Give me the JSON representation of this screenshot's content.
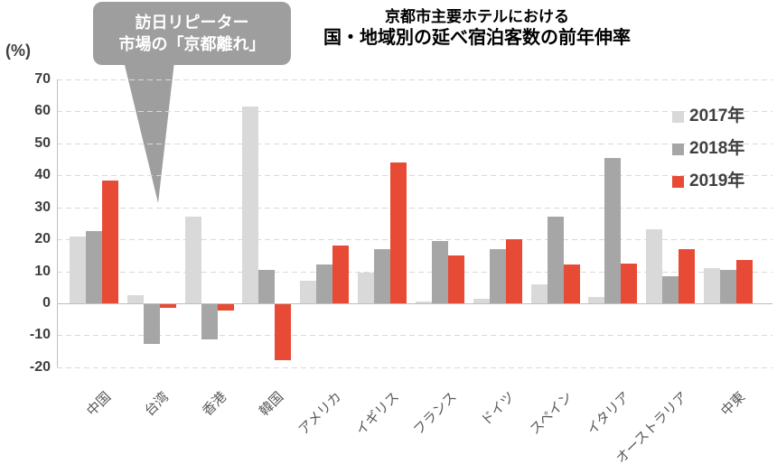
{
  "callout": {
    "line1": "訪日リピーター",
    "line2": "市場の「京都離れ」"
  },
  "title": {
    "line1": "京都市主要ホテルにおける",
    "line2": "国・地域別の延べ宿泊客数の前年伸率"
  },
  "y_axis": {
    "unit_label": "(%)",
    "ticks": [
      70,
      60,
      50,
      40,
      30,
      20,
      10,
      0,
      -10,
      -20
    ]
  },
  "colors": {
    "series_2017": "#d9d9d9",
    "series_2018": "#a6a6a6",
    "series_2019": "#e74b35",
    "gridline": "#d9d9d9",
    "axis_line": "#bfbfbf",
    "callout_bubble": "#9e9e9e"
  },
  "chart_data": {
    "type": "bar",
    "title": "京都市主要ホテルにおける 国・地域別の延べ宿泊客数の前年伸率",
    "ylabel": "(%)",
    "ylim": [
      -20,
      70
    ],
    "ytick_step": 10,
    "grid": "horizontal-dashed",
    "legend_position": "right",
    "categories": [
      "中国",
      "台湾",
      "香港",
      "韓国",
      "アメリカ",
      "イギリス",
      "フランス",
      "ドイツ",
      "スペイン",
      "イタリア",
      "オーストラリア",
      "中東"
    ],
    "series": [
      {
        "name": "2017年",
        "color": "#d9d9d9",
        "values": [
          21,
          2.5,
          27,
          61.5,
          7,
          9.5,
          0.5,
          1.5,
          6,
          2,
          23,
          11
        ]
      },
      {
        "name": "2018年",
        "color": "#a6a6a6",
        "values": [
          22.5,
          -12.5,
          -11,
          10.5,
          12,
          17,
          19.5,
          17,
          27,
          45.5,
          8.5,
          10.5
        ]
      },
      {
        "name": "2019年",
        "color": "#e74b35",
        "values": [
          38.5,
          -1,
          -2,
          -17.5,
          18,
          44,
          15,
          20,
          12,
          12.5,
          17,
          13.5
        ]
      }
    ]
  }
}
